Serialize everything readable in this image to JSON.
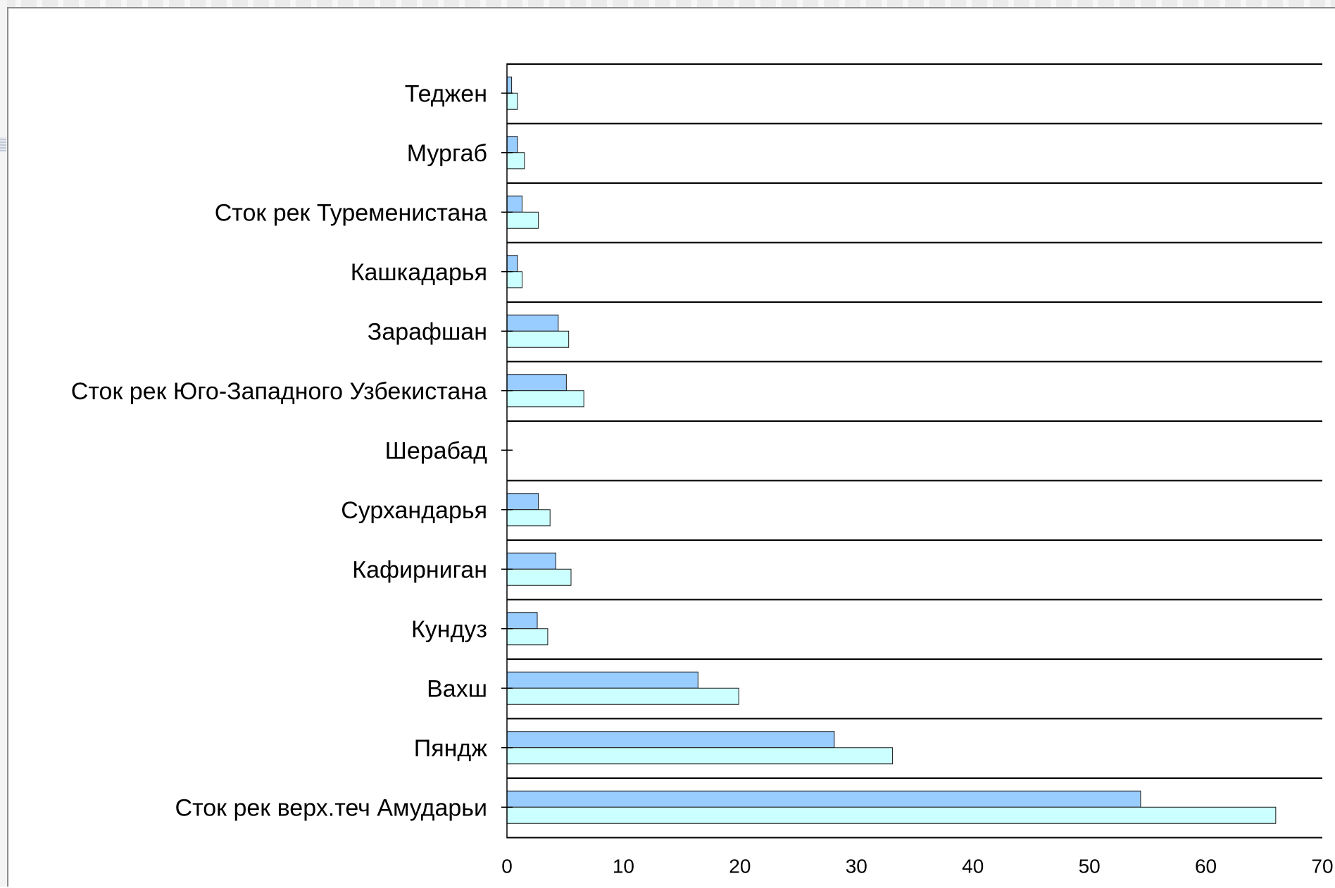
{
  "chart_data": {
    "type": "bar",
    "orientation": "horizontal",
    "title": "",
    "xlabel": "",
    "ylabel": "",
    "categories": [
      "Теджен",
      "Мургаб",
      "Сток рек Туременистана",
      "Кашкадарья",
      "Зарафшан",
      "Сток рек Юго-Западного Узбекистана",
      "Шерабад",
      "Сурхандарья",
      "Кафирниган",
      "Кундуз",
      "Вахш",
      "Пяндж",
      "Сток рек верх.теч Амударьи"
    ],
    "series": [
      {
        "values": [
          0.4,
          0.9,
          1.3,
          0.9,
          4.4,
          5.1,
          0,
          2.7,
          4.2,
          2.6,
          16.4,
          28.1,
          54.4
        ],
        "color": "#99ccff"
      },
      {
        "values": [
          0.9,
          1.5,
          2.7,
          1.3,
          5.3,
          6.6,
          0,
          3.7,
          5.5,
          3.5,
          19.9,
          33.1,
          66.0
        ],
        "color": "#ccffff"
      }
    ],
    "xlim": [
      0,
      70
    ],
    "xticks": [
      "0",
      "10",
      "20",
      "30",
      "40",
      "50",
      "60",
      "70"
    ],
    "gridlines": "horizontal",
    "legend": "none"
  }
}
